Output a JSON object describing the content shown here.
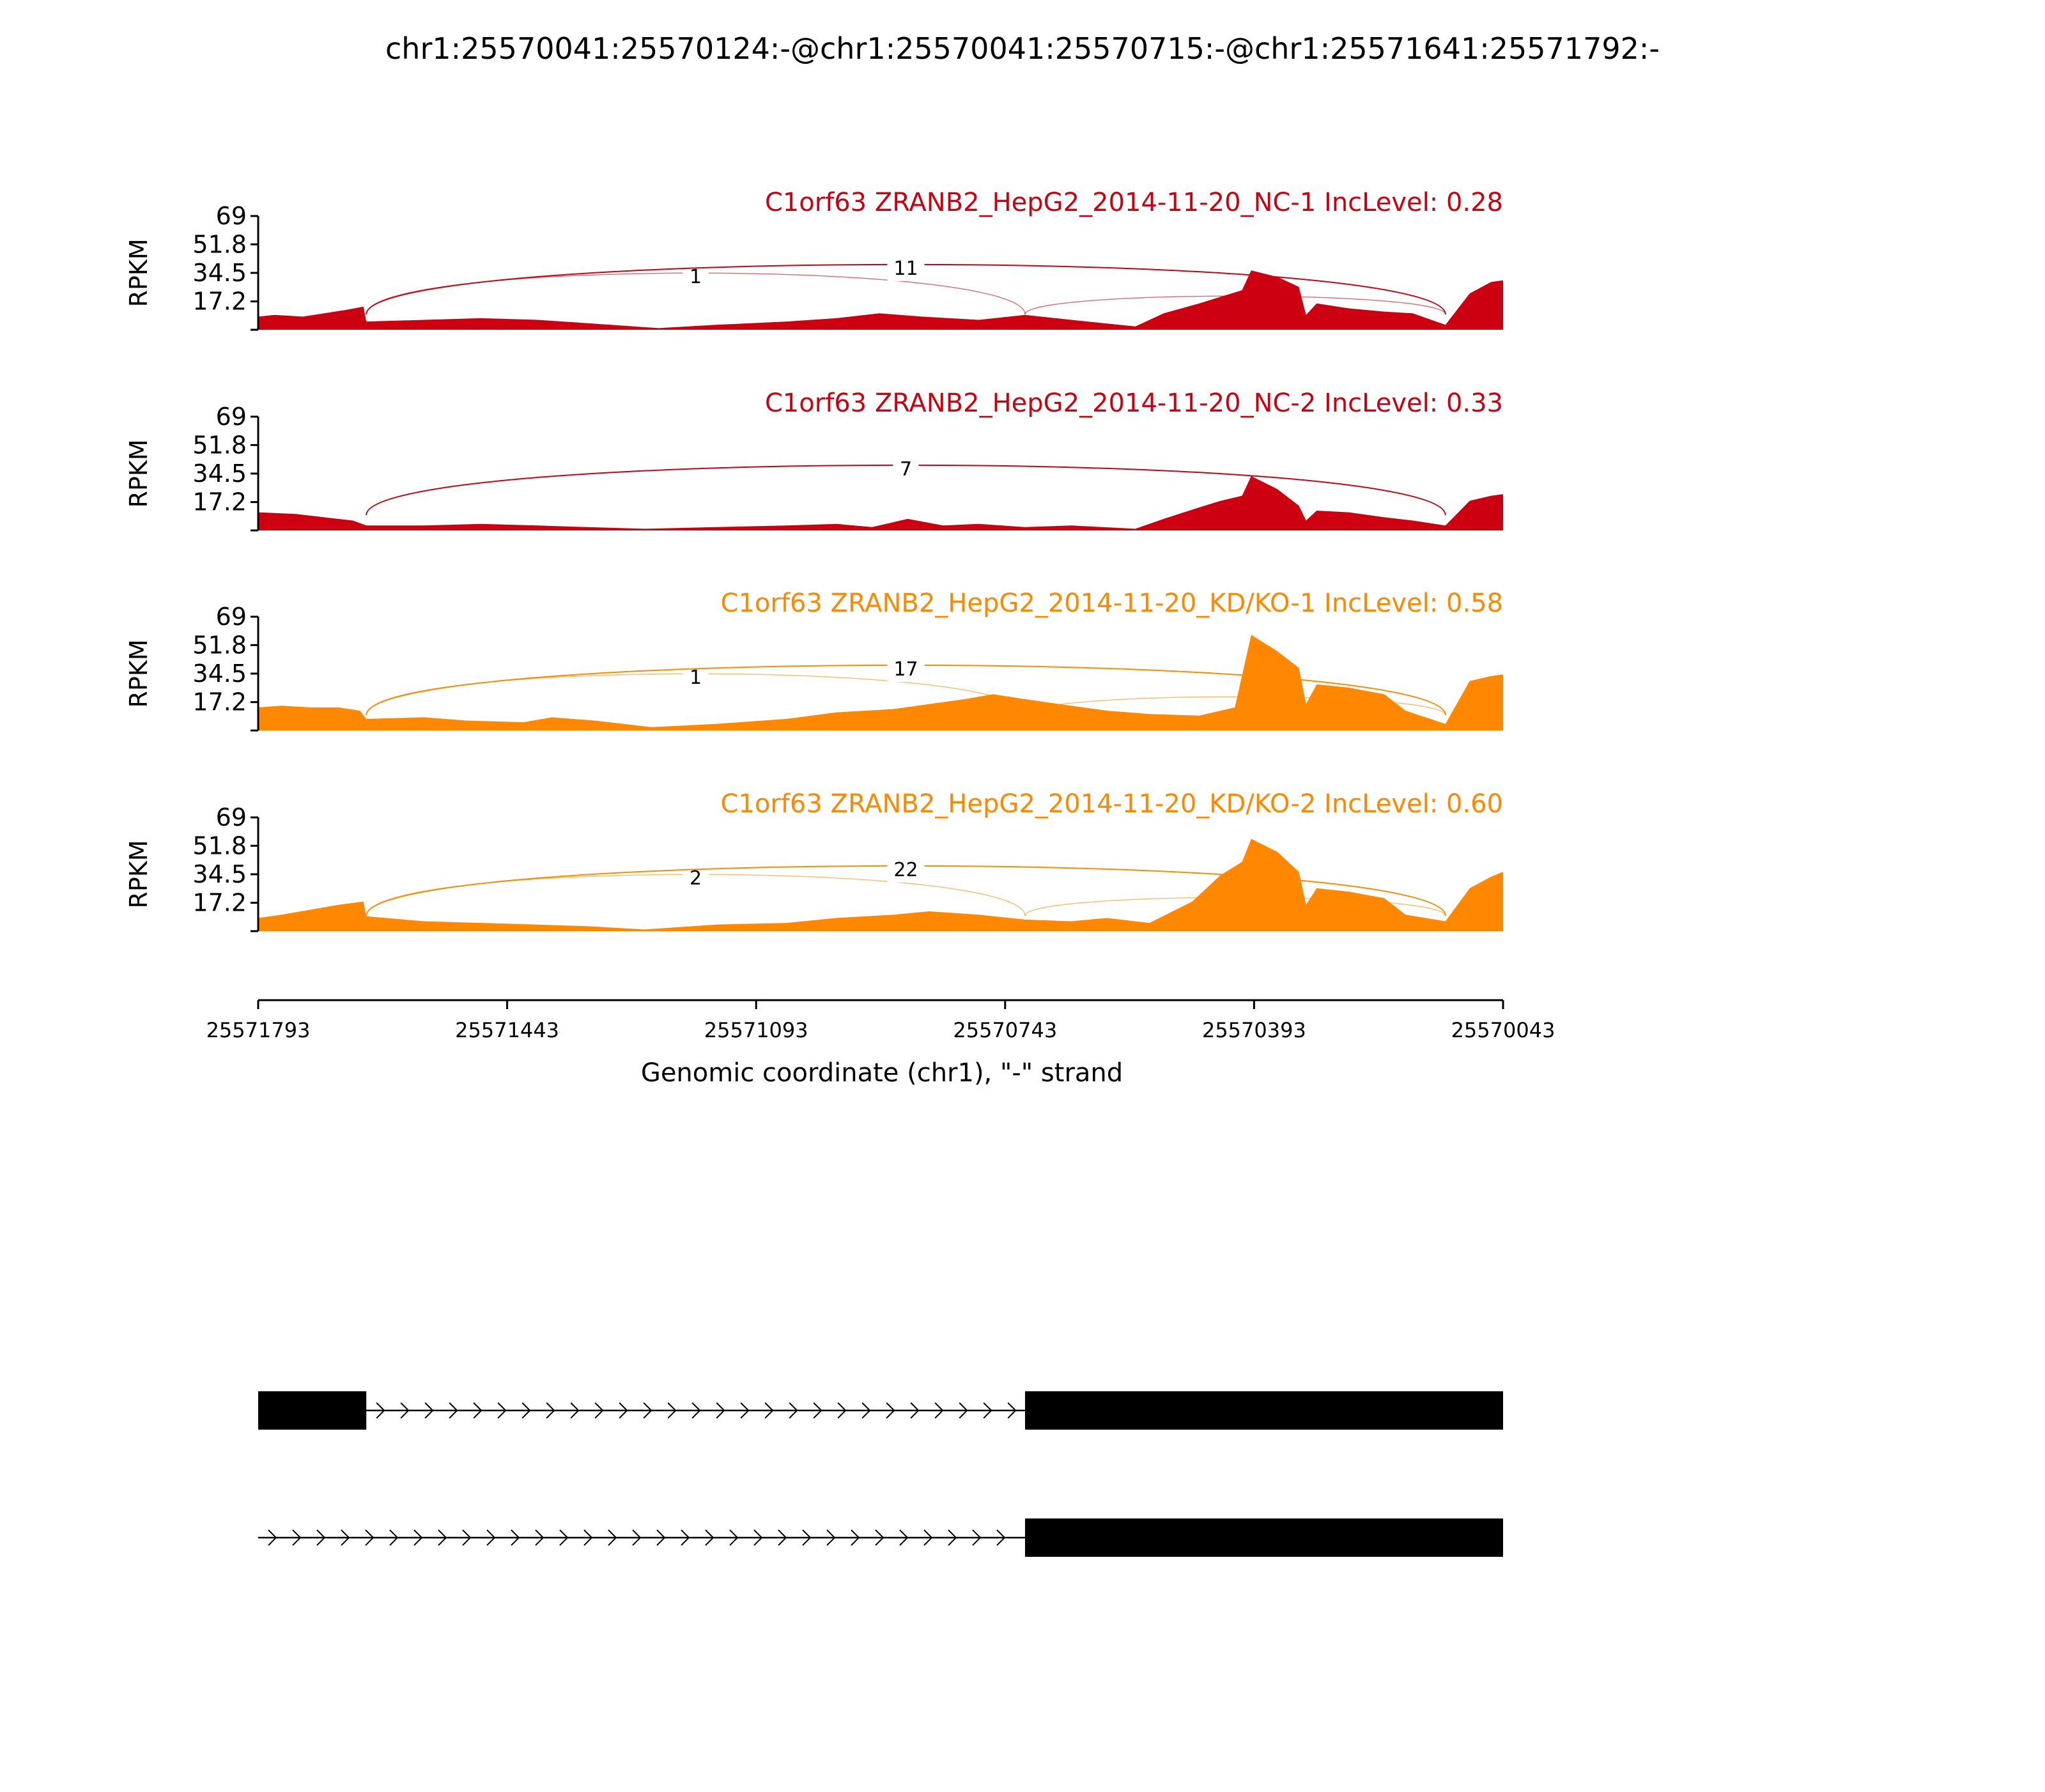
{
  "figure_title": "chr1:25570041:25570124:-@chr1:25570041:25570715:-@chr1:25571641:25571792:-",
  "colors": {
    "nc": "#cc0011",
    "kd": "#ff8800",
    "axis": "#000000",
    "gene": "#000000"
  },
  "chart_data": {
    "type": "area",
    "title": "chr1:25570041:25570124:-@chr1:25570041:25570715:-@chr1:25571641:25571792:-",
    "xlabel": "Genomic coordinate (chr1), \"-\" strand",
    "x_ticks": [
      "25571793",
      "25571443",
      "25571093",
      "25570743",
      "25570393",
      "25570043"
    ],
    "x_range": [
      25571793,
      25570043
    ],
    "ylabel": "RPKM",
    "y_ticks": [
      "69",
      "51.8",
      "34.5",
      "17.2"
    ],
    "y_range": [
      0,
      69
    ],
    "grid": false,
    "junctions": {
      "exon_a_end": 25571641,
      "middle_exon_start": 25570715,
      "exon_c_start": 25570124
    },
    "series": [
      {
        "name": "C1orf63 ZRANB2_HepG2_2014-11-20_NC-1 IncLevel: 0.28",
        "color": "#cc0011",
        "coverage": [
          [
            25571793,
            8
          ],
          [
            25571770,
            9
          ],
          [
            25571730,
            8
          ],
          [
            25571700,
            10
          ],
          [
            25571670,
            12
          ],
          [
            25571645,
            14
          ],
          [
            25571641,
            5
          ],
          [
            25571560,
            6
          ],
          [
            25571480,
            7
          ],
          [
            25571400,
            6
          ],
          [
            25571330,
            4
          ],
          [
            25571230,
            1
          ],
          [
            25571150,
            3
          ],
          [
            25571050,
            5
          ],
          [
            25570980,
            7
          ],
          [
            25570920,
            10
          ],
          [
            25570860,
            8
          ],
          [
            25570780,
            6
          ],
          [
            25570715,
            9
          ],
          [
            25570650,
            6
          ],
          [
            25570560,
            2
          ],
          [
            25570520,
            10
          ],
          [
            25570470,
            16
          ],
          [
            25570440,
            20
          ],
          [
            25570410,
            24
          ],
          [
            25570397,
            36
          ],
          [
            25570360,
            32
          ],
          [
            25570330,
            26
          ],
          [
            25570320,
            9
          ],
          [
            25570305,
            16
          ],
          [
            25570260,
            13
          ],
          [
            25570210,
            11
          ],
          [
            25570170,
            10
          ],
          [
            25570124,
            3
          ],
          [
            25570090,
            22
          ],
          [
            25570060,
            29
          ],
          [
            25570043,
            30
          ]
        ],
        "junction_counts": [
          {
            "from": 25571641,
            "to": 25570715,
            "count": "1"
          },
          {
            "from": 25571641,
            "to": 25570124,
            "count": "11"
          },
          {
            "from": 25570715,
            "to": 25570124,
            "count": ""
          }
        ]
      },
      {
        "name": "C1orf63 ZRANB2_HepG2_2014-11-20_NC-2 IncLevel: 0.33",
        "color": "#cc0011",
        "coverage": [
          [
            25571793,
            11
          ],
          [
            25571740,
            10
          ],
          [
            25571700,
            8
          ],
          [
            25571660,
            6
          ],
          [
            25571641,
            3
          ],
          [
            25571560,
            3
          ],
          [
            25571480,
            4
          ],
          [
            25571400,
            3
          ],
          [
            25571330,
            2
          ],
          [
            25571250,
            1
          ],
          [
            25571150,
            2
          ],
          [
            25571050,
            3
          ],
          [
            25570980,
            4
          ],
          [
            25570930,
            2
          ],
          [
            25570880,
            7
          ],
          [
            25570830,
            3
          ],
          [
            25570780,
            4
          ],
          [
            25570715,
            2
          ],
          [
            25570650,
            3
          ],
          [
            25570560,
            1
          ],
          [
            25570520,
            7
          ],
          [
            25570470,
            14
          ],
          [
            25570440,
            18
          ],
          [
            25570410,
            21
          ],
          [
            25570397,
            33
          ],
          [
            25570360,
            25
          ],
          [
            25570330,
            15
          ],
          [
            25570320,
            6
          ],
          [
            25570305,
            12
          ],
          [
            25570260,
            11
          ],
          [
            25570210,
            8
          ],
          [
            25570170,
            6
          ],
          [
            25570124,
            3
          ],
          [
            25570090,
            18
          ],
          [
            25570060,
            21
          ],
          [
            25570043,
            22
          ]
        ],
        "junction_counts": [
          {
            "from": 25571641,
            "to": 25570124,
            "count": "7"
          }
        ]
      },
      {
        "name": "C1orf63 ZRANB2_HepG2_2014-11-20_KD/KO-1 IncLevel: 0.58",
        "color": "#ff8800",
        "coverage": [
          [
            25571793,
            14
          ],
          [
            25571760,
            15
          ],
          [
            25571720,
            14
          ],
          [
            25571680,
            14
          ],
          [
            25571650,
            12
          ],
          [
            25571641,
            7
          ],
          [
            25571560,
            8
          ],
          [
            25571500,
            6
          ],
          [
            25571420,
            5
          ],
          [
            25571380,
            8
          ],
          [
            25571320,
            6
          ],
          [
            25571240,
            2
          ],
          [
            25571150,
            4
          ],
          [
            25571050,
            7
          ],
          [
            25570980,
            11
          ],
          [
            25570900,
            13
          ],
          [
            25570850,
            16
          ],
          [
            25570800,
            19
          ],
          [
            25570760,
            22
          ],
          [
            25570715,
            19
          ],
          [
            25570650,
            15
          ],
          [
            25570600,
            12
          ],
          [
            25570540,
            10
          ],
          [
            25570470,
            9
          ],
          [
            25570420,
            14
          ],
          [
            25570397,
            58
          ],
          [
            25570360,
            48
          ],
          [
            25570330,
            38
          ],
          [
            25570320,
            16
          ],
          [
            25570305,
            28
          ],
          [
            25570260,
            26
          ],
          [
            25570210,
            22
          ],
          [
            25570180,
            12
          ],
          [
            25570124,
            4
          ],
          [
            25570090,
            30
          ],
          [
            25570060,
            33
          ],
          [
            25570043,
            34
          ]
        ],
        "junction_counts": [
          {
            "from": 25571641,
            "to": 25570715,
            "count": "1"
          },
          {
            "from": 25571641,
            "to": 25570124,
            "count": "17"
          },
          {
            "from": 25570715,
            "to": 25570124,
            "count": ""
          }
        ]
      },
      {
        "name": "C1orf63 ZRANB2_HepG2_2014-11-20_KD/KO-2 IncLevel: 0.60",
        "color": "#ff8800",
        "coverage": [
          [
            25571793,
            8
          ],
          [
            25571760,
            10
          ],
          [
            25571720,
            13
          ],
          [
            25571680,
            16
          ],
          [
            25571645,
            18
          ],
          [
            25571641,
            9
          ],
          [
            25571560,
            6
          ],
          [
            25571480,
            5
          ],
          [
            25571400,
            4
          ],
          [
            25571330,
            3
          ],
          [
            25571250,
            1
          ],
          [
            25571150,
            4
          ],
          [
            25571050,
            5
          ],
          [
            25570980,
            8
          ],
          [
            25570900,
            10
          ],
          [
            25570850,
            12
          ],
          [
            25570780,
            10
          ],
          [
            25570715,
            7
          ],
          [
            25570650,
            6
          ],
          [
            25570600,
            8
          ],
          [
            25570540,
            5
          ],
          [
            25570480,
            18
          ],
          [
            25570440,
            34
          ],
          [
            25570410,
            42
          ],
          [
            25570397,
            56
          ],
          [
            25570360,
            48
          ],
          [
            25570330,
            36
          ],
          [
            25570320,
            16
          ],
          [
            25570305,
            26
          ],
          [
            25570260,
            24
          ],
          [
            25570210,
            20
          ],
          [
            25570180,
            10
          ],
          [
            25570124,
            6
          ],
          [
            25570090,
            26
          ],
          [
            25570060,
            33
          ],
          [
            25570043,
            36
          ]
        ],
        "junction_counts": [
          {
            "from": 25571641,
            "to": 25570715,
            "count": "2"
          },
          {
            "from": 25571641,
            "to": 25570124,
            "count": "22"
          },
          {
            "from": 25570715,
            "to": 25570124,
            "count": ""
          }
        ]
      }
    ],
    "gene_models": [
      {
        "exons": [
          [
            25571793,
            25571641
          ],
          [
            25570715,
            25570043
          ]
        ]
      },
      {
        "exons": [
          [
            25570715,
            25570043
          ]
        ]
      }
    ]
  }
}
